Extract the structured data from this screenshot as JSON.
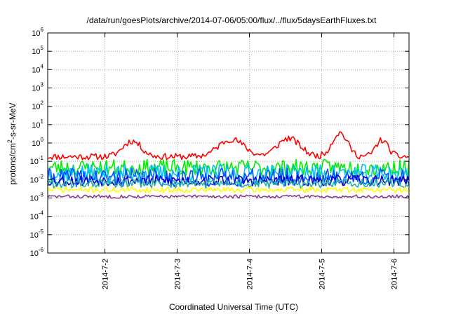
{
  "chart_data": {
    "type": "line",
    "title": "/data/run/goesPlots/archive/2014-07-06/05:00/flux/../flux/5daysEarthFluxes.txt",
    "xlabel": "Coordinated Universal Time (UTC)",
    "ylabel_base": "protons/cm",
    "ylabel_sup": "2",
    "ylabel_rest": "-s-sr-MeV",
    "y_scale": "log",
    "ylim": [
      1e-06,
      1000000.0
    ],
    "xlim": [
      "2014-07-01 05:00",
      "2014-07-06 05:00"
    ],
    "grid": true,
    "y_ticks": [
      {
        "value": 1e-06,
        "base": "10",
        "exp": "-6"
      },
      {
        "value": 1e-05,
        "base": "10",
        "exp": "-5"
      },
      {
        "value": 0.0001,
        "base": "10",
        "exp": "-4"
      },
      {
        "value": 0.001,
        "base": "10",
        "exp": "-3"
      },
      {
        "value": 0.01,
        "base": "10",
        "exp": "-2"
      },
      {
        "value": 0.1,
        "base": "10",
        "exp": "-1"
      },
      {
        "value": 1,
        "base": "10",
        "exp": "0"
      },
      {
        "value": 10,
        "base": "10",
        "exp": "1"
      },
      {
        "value": 100,
        "base": "10",
        "exp": "2"
      },
      {
        "value": 1000,
        "base": "10",
        "exp": "3"
      },
      {
        "value": 10000,
        "base": "10",
        "exp": "4"
      },
      {
        "value": 100000,
        "base": "10",
        "exp": "5"
      },
      {
        "value": 1000000,
        "base": "10",
        "exp": "6"
      }
    ],
    "x_ticks": [
      {
        "value": "2014-07-02 00:00",
        "label": "2014-7-2"
      },
      {
        "value": "2014-07-03 00:00",
        "label": "2014-7-3"
      },
      {
        "value": "2014-07-04 00:00",
        "label": "2014-7-4"
      },
      {
        "value": "2014-07-05 00:00",
        "label": "2014-7-5"
      },
      {
        "value": "2014-07-06 00:00",
        "label": "2014-7-6"
      }
    ],
    "series": [
      {
        "color": "#ff0000",
        "level": 0.18,
        "noise": 0.35,
        "seed": 11,
        "bumps": [
          {
            "center": "2014-07-02 09:00",
            "amp": 0.85,
            "width": 0.18
          },
          {
            "center": "2014-07-03 18:00",
            "amp": 0.95,
            "width": 0.25
          },
          {
            "center": "2014-07-04 13:00",
            "amp": 1.0,
            "width": 0.22
          },
          {
            "center": "2014-07-05 06:00",
            "amp": 1.3,
            "width": 0.15
          },
          {
            "center": "2014-07-05 20:00",
            "amp": 0.9,
            "width": 0.12
          }
        ]
      },
      {
        "color": "#00ee00",
        "level": 0.045,
        "noise": 0.9,
        "seed": 23,
        "bumps": []
      },
      {
        "color": "#00bfff",
        "level": 0.022,
        "noise": 1.0,
        "seed": 37,
        "bumps": []
      },
      {
        "color": "#0055ff",
        "level": 0.013,
        "noise": 1.0,
        "seed": 41,
        "bumps": []
      },
      {
        "color": "#0000cc",
        "level": 0.009,
        "noise": 0.6,
        "seed": 53,
        "bumps": []
      },
      {
        "color": "#20b2aa",
        "level": 0.006,
        "noise": 0.5,
        "seed": 61,
        "bumps": []
      },
      {
        "color": "#ffff00",
        "level": 0.0028,
        "noise": 0.3,
        "seed": 71,
        "bumps": []
      },
      {
        "color": "#8b3a8b",
        "level": 0.0012,
        "noise": 0.18,
        "seed": 83,
        "bumps": []
      }
    ]
  }
}
